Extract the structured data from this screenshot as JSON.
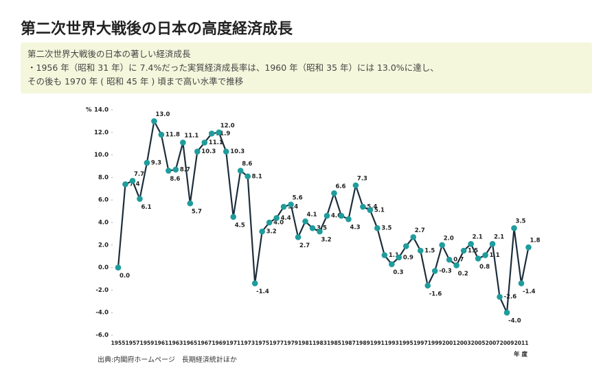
{
  "header": {
    "title": "第二次世界大戦後の日本の高度経済成長",
    "description": [
      "第二次世界大戦後の日本の著しい経済成長",
      "・1956 年（昭和 31 年）に 7.4%だった実質経済成長率は、1960 年（昭和 35 年）には 13.0%に達し、",
      "その後も 1970 年 ( 昭和 45 年 ) 頃まで高い水準で推移"
    ]
  },
  "source": "出典:内閣府ホームページ　長期経済統計ほか",
  "chart_data": {
    "type": "line",
    "y_unit": "%",
    "xlabel": "年 度",
    "x": [
      1955,
      1956,
      1957,
      1958,
      1959,
      1960,
      1961,
      1962,
      1963,
      1964,
      1965,
      1966,
      1967,
      1968,
      1969,
      1970,
      1971,
      1972,
      1973,
      1974,
      1975,
      1976,
      1977,
      1978,
      1979,
      1980,
      1981,
      1982,
      1983,
      1984,
      1985,
      1986,
      1987,
      1988,
      1989,
      1990,
      1991,
      1992,
      1993,
      1994,
      1995,
      1996,
      1997,
      1998,
      1999,
      2000,
      2001,
      2002,
      2003,
      2004,
      2005,
      2006,
      2007,
      2008,
      2009,
      2010,
      2011,
      2012
    ],
    "series": [
      {
        "name": "実質経済成長率",
        "color": "#1c2d3b",
        "marker_color": "#1f9c9c",
        "values": [
          0.0,
          7.4,
          7.7,
          6.1,
          9.3,
          13.0,
          11.8,
          8.6,
          8.7,
          11.1,
          5.7,
          10.3,
          11.1,
          11.9,
          12.0,
          10.3,
          4.5,
          8.6,
          8.1,
          -1.4,
          3.2,
          4.0,
          4.4,
          5.4,
          5.6,
          2.7,
          4.1,
          3.5,
          3.2,
          4.6,
          6.6,
          4.6,
          4.3,
          7.3,
          5.4,
          5.1,
          3.5,
          1.1,
          0.3,
          0.9,
          1.9,
          2.7,
          1.5,
          -1.6,
          -0.3,
          2.0,
          0.7,
          0.2,
          1.5,
          2.1,
          0.8,
          1.1,
          2.1,
          -2.6,
          -4.0,
          3.5,
          -1.4,
          1.8
        ],
        "value_labels": [
          "0.0",
          "7.4",
          "7.7",
          "6.1",
          "9.3",
          "13.0",
          "11.8",
          "8.6",
          "8.7",
          "11.1",
          "5.7",
          "10.3",
          "11.1",
          "11.9",
          "12.0",
          "10.3",
          "4.5",
          "8.6",
          "8.1",
          "-1.4",
          "3.2",
          "4.0",
          "4.4",
          "5.4",
          "5.6",
          "2.7",
          "4.1",
          "3.5",
          "3.2",
          "4.6",
          "6.6",
          null,
          "4.3",
          "7.3",
          "5.4",
          "5.1",
          "3.5",
          "1.1",
          "0.3",
          "0.9",
          null,
          "2.7",
          "1.5",
          "-1.6",
          "-0.3",
          "2.0",
          "0.7",
          "0.2",
          "1.5",
          "2.1",
          "0.8",
          "1.1",
          "2.1",
          "-2.6",
          "-4.0",
          "3.5",
          "-1.4",
          "1.8"
        ]
      }
    ],
    "xlim": [
      1955,
      2012
    ],
    "xticks": [
      1955,
      1957,
      1959,
      1961,
      1963,
      1965,
      1967,
      1969,
      1971,
      1973,
      1975,
      1977,
      1979,
      1981,
      1983,
      1985,
      1987,
      1989,
      1991,
      1993,
      1995,
      1997,
      1999,
      2001,
      2003,
      2005,
      2007,
      2009,
      2011
    ],
    "ylim": [
      -6,
      14
    ],
    "yticks": [
      {
        "value": -6,
        "label": "-6.0"
      },
      {
        "value": -4,
        "label": "-4.0"
      },
      {
        "value": -2,
        "label": "-2.0"
      },
      {
        "value": 0,
        "label": "0.0"
      },
      {
        "value": 2,
        "label": "2.0"
      },
      {
        "value": 4,
        "label": "4.0"
      },
      {
        "value": 6,
        "label": "6.0"
      },
      {
        "value": 8,
        "label": "8.0"
      },
      {
        "value": 10,
        "label": "10.0"
      },
      {
        "value": 12,
        "label": "12.0"
      },
      {
        "value": 14,
        "label": "14.0"
      }
    ]
  }
}
